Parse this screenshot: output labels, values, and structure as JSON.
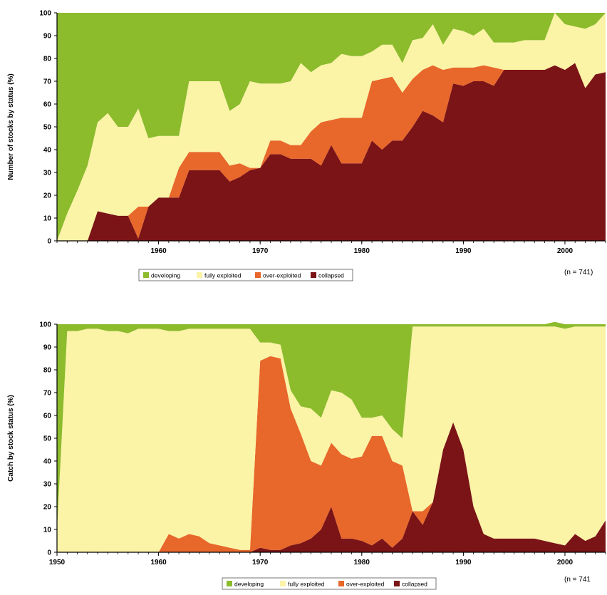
{
  "colors": {
    "developing": "#8cbb2c",
    "fully_exploited": "#fbf3a6",
    "over_exploited": "#e8672a",
    "collapsed": "#7b1417"
  },
  "chart_data": [
    {
      "type": "area",
      "stacked": true,
      "ylabel": "Number of stocks by status (%)",
      "xlabel": "",
      "xlim": [
        1950,
        2004
      ],
      "ylim": [
        0,
        100
      ],
      "x_ticks": [
        1960,
        1970,
        1980,
        1990,
        2000
      ],
      "y_ticks": [
        0,
        10,
        20,
        30,
        40,
        50,
        60,
        70,
        80,
        90,
        100
      ],
      "note": "(n = 741)",
      "legend_position": "bottom-center",
      "legend": [
        "developing",
        "fully exploited",
        "over-exploited",
        "collapsed"
      ],
      "x": [
        1950,
        1951,
        1952,
        1953,
        1954,
        1955,
        1956,
        1957,
        1958,
        1959,
        1960,
        1961,
        1962,
        1963,
        1964,
        1965,
        1966,
        1967,
        1968,
        1969,
        1970,
        1971,
        1972,
        1973,
        1974,
        1975,
        1976,
        1977,
        1978,
        1979,
        1980,
        1981,
        1982,
        1983,
        1984,
        1985,
        1986,
        1987,
        1988,
        1989,
        1990,
        1991,
        1992,
        1993,
        1994,
        1995,
        1996,
        1997,
        1998,
        1999,
        2000,
        2001,
        2002,
        2003,
        2004
      ],
      "series": [
        {
          "name": "collapsed",
          "color_key": "collapsed",
          "values": [
            0,
            0,
            0,
            0,
            13,
            12,
            11,
            11,
            1,
            15,
            19,
            19,
            19,
            31,
            31,
            31,
            31,
            26,
            28,
            31,
            32,
            38,
            38,
            36,
            36,
            36,
            33,
            42,
            34,
            34,
            34,
            44,
            40,
            44,
            44,
            50,
            57,
            55,
            52,
            69,
            68,
            70,
            70,
            68,
            75,
            75,
            75,
            75,
            75,
            77,
            75,
            78,
            67,
            73,
            74
          ]
        },
        {
          "name": "over-exploited",
          "color_key": "over_exploited",
          "values": [
            0,
            0,
            0,
            0,
            0,
            0,
            0,
            0,
            14,
            0,
            0,
            0,
            13,
            8,
            8,
            8,
            8,
            7,
            6,
            1,
            0,
            6,
            6,
            6,
            6,
            12,
            19,
            11,
            20,
            20,
            20,
            26,
            31,
            28,
            21,
            21,
            18,
            22,
            23,
            7,
            8,
            6,
            7,
            8,
            0,
            0,
            0,
            0,
            0,
            0,
            0,
            0,
            0,
            0,
            0
          ]
        },
        {
          "name": "fully exploited",
          "color_key": "fully_exploited",
          "values": [
            0,
            12,
            22,
            33,
            39,
            44,
            39,
            39,
            43,
            30,
            27,
            27,
            14,
            31,
            31,
            31,
            31,
            24,
            26,
            38,
            37,
            25,
            25,
            28,
            36,
            26,
            25,
            25,
            28,
            27,
            27,
            13,
            15,
            14,
            13,
            17,
            14,
            18,
            11,
            17,
            16,
            14,
            16,
            11,
            12,
            12,
            13,
            13,
            13,
            23,
            20,
            16,
            26,
            22,
            26
          ]
        },
        {
          "name": "developing",
          "color_key": "developing",
          "values": [
            100,
            88,
            78,
            67,
            48,
            44,
            50,
            50,
            42,
            55,
            54,
            54,
            54,
            30,
            30,
            30,
            30,
            43,
            40,
            30,
            31,
            31,
            31,
            30,
            22,
            26,
            23,
            22,
            18,
            19,
            19,
            17,
            14,
            14,
            22,
            12,
            11,
            5,
            14,
            7,
            8,
            10,
            7,
            13,
            13,
            13,
            12,
            12,
            12,
            0,
            5,
            6,
            7,
            5,
            0
          ]
        }
      ]
    },
    {
      "type": "area",
      "stacked": true,
      "ylabel": "Catch by stock status (%)",
      "xlabel": "",
      "xlim": [
        1950,
        2004
      ],
      "ylim": [
        0,
        100
      ],
      "x_ticks": [
        1950,
        1960,
        1970,
        1980,
        1990,
        2000
      ],
      "y_ticks": [
        0,
        10,
        20,
        30,
        40,
        50,
        60,
        70,
        80,
        90,
        100
      ],
      "note": "(n = 741",
      "legend_position": "bottom-center",
      "legend": [
        "developing",
        "fully exploited",
        "over-exploited",
        "collapsed"
      ],
      "x": [
        1950,
        1951,
        1952,
        1953,
        1954,
        1955,
        1956,
        1957,
        1958,
        1959,
        1960,
        1961,
        1962,
        1963,
        1964,
        1965,
        1966,
        1967,
        1968,
        1969,
        1970,
        1971,
        1972,
        1973,
        1974,
        1975,
        1976,
        1977,
        1978,
        1979,
        1980,
        1981,
        1982,
        1983,
        1984,
        1985,
        1986,
        1987,
        1988,
        1989,
        1990,
        1991,
        1992,
        1993,
        1994,
        1995,
        1996,
        1997,
        1998,
        1999,
        2000,
        2001,
        2002,
        2003,
        2004
      ],
      "series": [
        {
          "name": "collapsed",
          "color_key": "collapsed",
          "values": [
            0,
            0,
            0,
            0,
            0,
            0,
            0,
            0,
            0,
            0,
            0,
            0,
            0,
            0,
            0,
            0,
            0,
            0,
            0,
            0,
            2,
            1,
            1,
            3,
            4,
            6,
            10,
            20,
            6,
            6,
            5,
            3,
            6,
            2,
            6,
            18,
            12,
            22,
            45,
            57,
            45,
            20,
            8,
            6,
            6,
            6,
            6,
            6,
            5,
            4,
            3,
            8,
            5,
            7,
            14
          ]
        },
        {
          "name": "over-exploited",
          "color_key": "over_exploited",
          "values": [
            0,
            0,
            0,
            0,
            0,
            0,
            0,
            0,
            0,
            0,
            0,
            8,
            6,
            8,
            7,
            4,
            3,
            2,
            1,
            1,
            82,
            85,
            84,
            60,
            48,
            34,
            28,
            28,
            37,
            35,
            37,
            48,
            45,
            38,
            32,
            0,
            6,
            0,
            0,
            0,
            0,
            0,
            0,
            0,
            0,
            0,
            0,
            0,
            0,
            0,
            0,
            0,
            0,
            0,
            0
          ]
        },
        {
          "name": "fully exploited",
          "color_key": "fully_exploited",
          "values": [
            10,
            97,
            97,
            98,
            98,
            97,
            97,
            96,
            98,
            98,
            98,
            89,
            91,
            90,
            91,
            94,
            95,
            96,
            97,
            97,
            8,
            6,
            6,
            8,
            12,
            23,
            21,
            23,
            27,
            26,
            17,
            8,
            9,
            14,
            12,
            81,
            81,
            77,
            54,
            42,
            54,
            79,
            91,
            93,
            93,
            93,
            93,
            93,
            94,
            95,
            95,
            91,
            94,
            92,
            85
          ]
        },
        {
          "name": "developing",
          "color_key": "developing",
          "values": [
            90,
            3,
            3,
            2,
            2,
            3,
            3,
            4,
            2,
            2,
            2,
            3,
            3,
            2,
            2,
            2,
            2,
            2,
            2,
            2,
            8,
            8,
            9,
            29,
            36,
            37,
            41,
            29,
            30,
            33,
            41,
            41,
            40,
            46,
            50,
            1,
            1,
            1,
            1,
            1,
            1,
            1,
            1,
            1,
            1,
            1,
            1,
            1,
            1,
            2,
            2,
            1,
            1,
            1,
            1
          ]
        }
      ]
    }
  ]
}
